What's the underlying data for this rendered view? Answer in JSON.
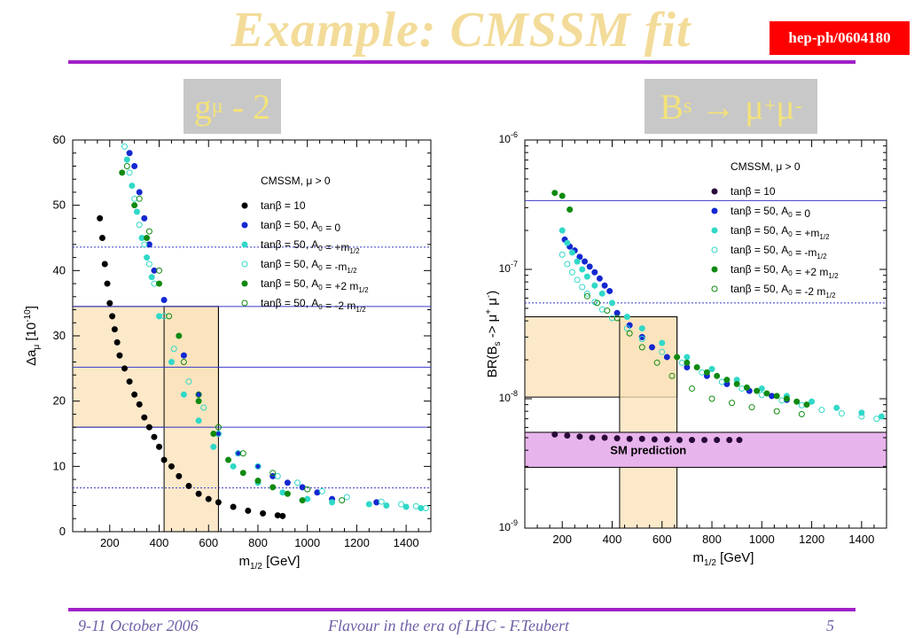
{
  "slide": {
    "title": "Example: CMSSM fit",
    "reference": "hep-ph/0604180",
    "left_label": {
      "main": "g",
      "sub": "μ",
      "rest": " - 2"
    },
    "right_label": {
      "main": "B",
      "sub": "s",
      "rest": " → μ",
      "sup1": "+",
      "mid": "μ",
      "sup2": "-"
    },
    "footer_left": "9-11 October 2006",
    "footer_center": "Flavour in the era of LHC - F.Teubert",
    "page_number": "5"
  },
  "chart_data": [
    {
      "type": "scatter",
      "title": "g_mu - 2",
      "xlabel": "m_1/2 [GeV]",
      "ylabel": "Δa_μ [10^-10]",
      "xlim": [
        50,
        1500
      ],
      "ylim": [
        0,
        60
      ],
      "xticks": [
        200,
        400,
        600,
        800,
        1000,
        1200,
        1400
      ],
      "yticks": [
        0,
        10,
        20,
        30,
        40,
        50,
        60
      ],
      "legend_header": "CMSSM, μ > 0",
      "legend_position": "top-right",
      "hlines": [
        {
          "y": 43.6,
          "style": "dotted"
        },
        {
          "y": 34.5,
          "style": "solid"
        },
        {
          "y": 25.2,
          "style": "solid"
        },
        {
          "y": 16.0,
          "style": "solid"
        },
        {
          "y": 6.7,
          "style": "dotted"
        }
      ],
      "bands": [
        {
          "orientation": "horizontal",
          "from": 16.0,
          "to": 34.5,
          "x_from": 50,
          "x_to": 640
        },
        {
          "orientation": "vertical",
          "from": 420,
          "to": 640,
          "y_from": 0,
          "y_to": 34.5
        }
      ],
      "series": [
        {
          "name": "tanβ = 10",
          "color": "#000000",
          "filled": true,
          "x": [
            160,
            170,
            180,
            190,
            200,
            210,
            220,
            230,
            240,
            260,
            280,
            300,
            320,
            340,
            360,
            380,
            400,
            420,
            450,
            480,
            520,
            560,
            600,
            640,
            700,
            760,
            820,
            880,
            900
          ],
          "y": [
            48,
            45,
            41,
            38,
            35,
            33,
            31,
            29,
            27,
            25,
            23,
            21,
            19.5,
            17.5,
            16,
            14.5,
            13,
            11,
            10,
            8.5,
            7,
            5.8,
            5,
            4.5,
            3.8,
            3.2,
            2.8,
            2.5,
            2.4
          ]
        },
        {
          "name": "tanβ = 50, A_0 = 0",
          "color": "#1428d0",
          "filled": true,
          "x": [
            280,
            300,
            320,
            340,
            360,
            380,
            420,
            500,
            560,
            640,
            720,
            800,
            860,
            920,
            980,
            1040,
            1100,
            1280
          ],
          "y": [
            58,
            56,
            52,
            48,
            44,
            40,
            35.5,
            27,
            21,
            15,
            12,
            10,
            8.5,
            7.5,
            6.8,
            6,
            5,
            4.5
          ]
        },
        {
          "name": "tanβ = 50, A_0 = +m_1/2",
          "color": "#30d8c8",
          "filled": true,
          "x": [
            270,
            290,
            310,
            330,
            350,
            370,
            400,
            450,
            500,
            560,
            620,
            700,
            800,
            900,
            1000,
            1100,
            1250,
            1320,
            1400,
            1460
          ],
          "y": [
            57,
            53,
            49,
            45,
            42,
            39,
            33,
            26,
            21,
            17,
            13,
            10,
            7.5,
            6,
            5,
            4.5,
            4.2,
            4,
            3.8,
            3.6
          ]
        },
        {
          "name": "tanβ = 50, A_0 = -m_1/2",
          "color": "#30d8c8",
          "filled": false,
          "x": [
            260,
            280,
            300,
            320,
            340,
            360,
            380,
            420,
            460,
            520,
            580,
            640,
            720,
            800,
            880,
            960,
            1060,
            1160,
            1300,
            1380,
            1440,
            1480
          ],
          "y": [
            59,
            55,
            51,
            47,
            44,
            41,
            38,
            33,
            28,
            23,
            19,
            15,
            12,
            10,
            8.5,
            7.5,
            6.2,
            5.3,
            4.6,
            4.2,
            3.9,
            3.6
          ]
        },
        {
          "name": "tanβ = 50, A_0 = +2 m_1/2",
          "color": "#108a10",
          "filled": true,
          "x": [
            250,
            300,
            350,
            400,
            480,
            560,
            620,
            680,
            740,
            800,
            860,
            920,
            980
          ],
          "y": [
            55,
            50,
            45,
            38,
            30,
            20,
            15,
            11,
            9,
            7.8,
            6.8,
            5.8,
            4.8
          ]
        },
        {
          "name": "tanβ = 50, A_0 = -2 m_1/2",
          "color": "#108a10",
          "filled": false,
          "x": [
            270,
            320,
            360,
            400,
            440,
            500,
            560,
            640,
            740,
            860,
            1000,
            1140
          ],
          "y": [
            56,
            51,
            46,
            40,
            33,
            26,
            21,
            16,
            12,
            9,
            6.5,
            4.8
          ]
        }
      ]
    },
    {
      "type": "scatter",
      "title": "B_s → μ+μ-",
      "xlabel": "m_1/2 [GeV]",
      "ylabel": "BR(B_s -> μ+ μ-)",
      "xlim": [
        50,
        1500
      ],
      "ylim": [
        1e-09,
        1e-06
      ],
      "yscale": "log",
      "xticks": [
        200,
        400,
        600,
        800,
        1000,
        1200,
        1400
      ],
      "ytick_labels": [
        "10^-9",
        "10^-8",
        "10^-7",
        "10^-6"
      ],
      "legend_header": "CMSSM, μ > 0",
      "legend_position": "top-right",
      "hlines": [
        {
          "y": 3.4e-07,
          "style": "solid"
        },
        {
          "y": 5.5e-08,
          "style": "dotted"
        }
      ],
      "bands": [
        {
          "orientation": "horizontal",
          "from": 1.03e-08,
          "to": 4.3e-08,
          "x_from": 50,
          "x_to": 660
        },
        {
          "orientation": "vertical",
          "from": 430,
          "to": 660,
          "y_from": 1e-09,
          "y_to": 4.3e-08
        },
        {
          "orientation": "horizontal",
          "from": 2.95e-09,
          "to": 5.5e-09,
          "x_from": 50,
          "x_to": 1500,
          "label": "SM prediction",
          "color": "#e8b4ec"
        }
      ],
      "series": [
        {
          "name": "tanβ = 10",
          "color": "#2a0838",
          "filled": true,
          "x": [
            170,
            220,
            270,
            320,
            370,
            420,
            470,
            520,
            570,
            620,
            670,
            720,
            770,
            820,
            870,
            910
          ],
          "y": [
            5.3e-09,
            5.2e-09,
            5.1e-09,
            5e-09,
            5e-09,
            4.95e-09,
            4.9e-09,
            4.9e-09,
            4.85e-09,
            4.85e-09,
            4.8e-09,
            4.8e-09,
            4.8e-09,
            4.8e-09,
            4.8e-09,
            4.8e-09
          ]
        },
        {
          "name": "tanβ = 50, A_0 = 0",
          "color": "#1428d0",
          "filled": true,
          "x": [
            210,
            230,
            250,
            270,
            290,
            310,
            330,
            350,
            370,
            390,
            420,
            470,
            520,
            560,
            620,
            700,
            780,
            860,
            950,
            1040,
            1100
          ],
          "y": [
            1.7e-07,
            1.5e-07,
            1.4e-07,
            1.25e-07,
            1.15e-07,
            1.05e-07,
            9.5e-08,
            8.5e-08,
            7.5e-08,
            6.8e-08,
            4.6e-08,
            3.7e-08,
            3e-08,
            2.5e-08,
            2.1e-08,
            1.75e-08,
            1.5e-08,
            1.3e-08,
            1.15e-08,
            1.05e-08,
            9.8e-09
          ]
        },
        {
          "name": "tanβ = 50, A_0 = +m_1/2",
          "color": "#30d8c8",
          "filled": true,
          "x": [
            200,
            220,
            240,
            260,
            280,
            300,
            330,
            360,
            400,
            460,
            520,
            600,
            700,
            800,
            900,
            1000,
            1100,
            1200,
            1300,
            1400,
            1480
          ],
          "y": [
            2e-07,
            1.6e-07,
            1.35e-07,
            1.15e-07,
            1e-07,
            8.8e-08,
            7.5e-08,
            6.5e-08,
            5.5e-08,
            4.3e-08,
            3.5e-08,
            2.7e-08,
            2.1e-08,
            1.7e-08,
            1.4e-08,
            1.2e-08,
            1.05e-08,
            9.5e-09,
            8.5e-09,
            7.8e-09,
            7.3e-09
          ]
        },
        {
          "name": "tanβ = 50, A_0 = -m_1/2",
          "color": "#30d8c8",
          "filled": false,
          "x": [
            200,
            220,
            240,
            260,
            280,
            300,
            330,
            360,
            400,
            460,
            520,
            600,
            680,
            760,
            840,
            920,
            1000,
            1080,
            1160,
            1240,
            1320,
            1400,
            1460
          ],
          "y": [
            1.3e-07,
            1.1e-07,
            9.5e-08,
            8.3e-08,
            7.3e-08,
            6.5e-08,
            5.6e-08,
            4.9e-08,
            4.2e-08,
            3.5e-08,
            2.9e-08,
            2.3e-08,
            1.9e-08,
            1.6e-08,
            1.35e-08,
            1.2e-08,
            1.07e-08,
            9.7e-09,
            8.9e-09,
            8.2e-09,
            7.7e-09,
            7.3e-09,
            7e-09
          ]
        },
        {
          "name": "tanβ = 50, A_0 = +2 m_1/2",
          "color": "#108a10",
          "filled": true,
          "x": [
            170,
            200,
            230,
            660,
            700,
            740,
            780,
            820,
            860,
            900,
            940,
            980,
            1020,
            1060,
            1100,
            1140,
            1180
          ],
          "y": [
            3.9e-07,
            3.7e-07,
            2.9e-07,
            2.1e-08,
            1.9e-08,
            1.75e-08,
            1.6e-08,
            1.5e-08,
            1.4e-08,
            1.3e-08,
            1.22e-08,
            1.15e-08,
            1.1e-08,
            1.05e-08,
            1e-08,
            9.5e-09,
            9e-09
          ]
        },
        {
          "name": "tanβ = 50, A_0 = -2 m_1/2",
          "color": "#108a10",
          "filled": false,
          "x": [
            300,
            340,
            380,
            420,
            470,
            520,
            580,
            640,
            720,
            800,
            880,
            960,
            1060,
            1160
          ],
          "y": [
            6.2e-08,
            5.5e-08,
            4.8e-08,
            4.2e-08,
            3.2e-08,
            2.5e-08,
            1.9e-08,
            1.5e-08,
            1.2e-08,
            1e-08,
            9.3e-09,
            8.6e-09,
            8e-09,
            7.6e-09
          ]
        }
      ]
    }
  ]
}
